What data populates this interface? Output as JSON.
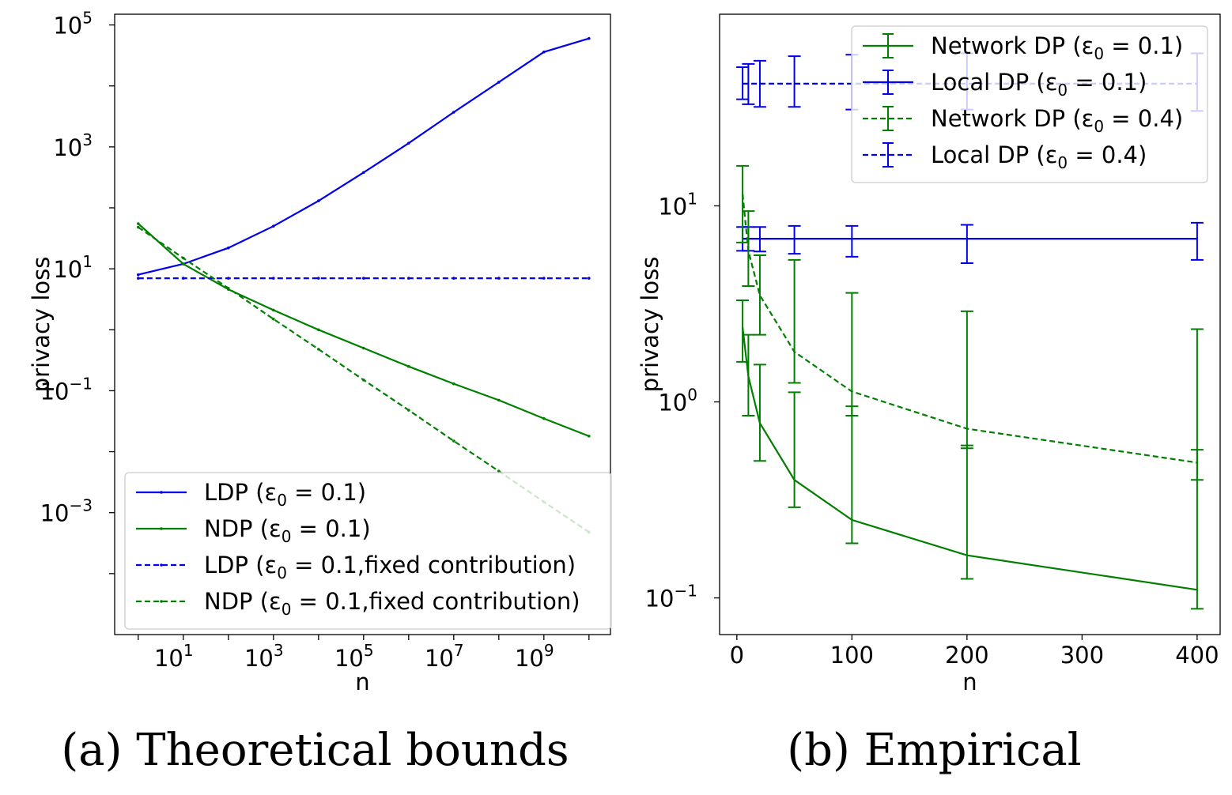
{
  "colors": {
    "ldp": "#0000ee",
    "ndp": "#007f00"
  },
  "chart_data": [
    {
      "type": "line",
      "caption": "(a) Theoretical bounds",
      "xlabel": "n",
      "ylabel": "privacy loss",
      "xscale": "log",
      "yscale": "log",
      "xlim": [
        0.3,
        30000000000
      ],
      "ylim": [
        1e-05,
        150000
      ],
      "xticks": [
        {
          "value": 10,
          "base": "10",
          "exp": "1"
        },
        {
          "value": 1000,
          "base": "10",
          "exp": "3"
        },
        {
          "value": 100000,
          "base": "10",
          "exp": "5"
        },
        {
          "value": 10000000,
          "base": "10",
          "exp": "7"
        },
        {
          "value": 1000000000,
          "base": "10",
          "exp": "9"
        }
      ],
      "yticks": [
        {
          "value": 0.001,
          "base": "10",
          "exp": "−3"
        },
        {
          "value": 0.1,
          "base": "10",
          "exp": "−1"
        },
        {
          "value": 10,
          "base": "10",
          "exp": "1"
        },
        {
          "value": 1000,
          "base": "10",
          "exp": "3"
        },
        {
          "value": 100000,
          "base": "10",
          "exp": "5"
        }
      ],
      "legend_position": "lower-right",
      "series": [
        {
          "name": "LDP (ε0 = 0.1)",
          "color": "ldp",
          "dash": "solid",
          "x": [
            1,
            10,
            100,
            1000,
            10000,
            100000,
            1000000,
            10000000,
            100000000,
            1000000000,
            10000000000
          ],
          "y": [
            8,
            12,
            22,
            50,
            130,
            380,
            1150,
            3700,
            11500,
            36000,
            60000
          ]
        },
        {
          "name": "NDP (ε0 = 0.1)",
          "color": "ndp",
          "dash": "solid",
          "x": [
            1,
            10,
            100,
            1000,
            10000,
            100000,
            1000000,
            10000000,
            100000000,
            1000000000,
            10000000000
          ],
          "y": [
            55,
            12,
            4.6,
            2.1,
            1.0,
            0.5,
            0.25,
            0.13,
            0.07,
            0.035,
            0.018
          ]
        },
        {
          "name": "LDP (ε0 = 0.1,fixed contribution)",
          "color": "ldp",
          "dash": "dashed",
          "x": [
            1,
            10,
            100,
            1000,
            10000,
            100000,
            1000000,
            10000000,
            100000000,
            1000000000,
            10000000000
          ],
          "y": [
            7,
            7,
            7,
            7,
            7,
            7,
            7,
            7,
            7,
            7,
            7
          ]
        },
        {
          "name": "NDP (ε0 = 0.1,fixed contribution)",
          "color": "ndp",
          "dash": "dashed",
          "x": [
            1,
            10,
            100,
            1000,
            10000,
            100000,
            1000000,
            10000000,
            100000000,
            1000000000,
            10000000000
          ],
          "y": [
            48,
            15,
            4.8,
            1.5,
            0.48,
            0.15,
            0.048,
            0.015,
            0.0048,
            0.0015,
            0.00048
          ]
        }
      ]
    },
    {
      "type": "line",
      "caption": "(b) Empirical",
      "xlabel": "n",
      "ylabel": "privacy loss",
      "xscale": "linear",
      "yscale": "log",
      "xlim": [
        -15,
        420
      ],
      "ylim": [
        0.065,
        95
      ],
      "xticks": [
        {
          "value": 0,
          "label": "0"
        },
        {
          "value": 100,
          "label": "100"
        },
        {
          "value": 200,
          "label": "200"
        },
        {
          "value": 300,
          "label": "300"
        },
        {
          "value": 400,
          "label": "400"
        }
      ],
      "yticks": [
        {
          "value": 0.1,
          "base": "10",
          "exp": "−1"
        },
        {
          "value": 1,
          "base": "10",
          "exp": "0"
        },
        {
          "value": 10,
          "base": "10",
          "exp": "1"
        }
      ],
      "legend_position": "upper-right",
      "series": [
        {
          "name": "Network DP (ε0 = 0.1)",
          "color": "ndp",
          "dash": "solid",
          "x": [
            5,
            10,
            20,
            50,
            100,
            200,
            400
          ],
          "y": [
            2.4,
            1.35,
            0.78,
            0.4,
            0.25,
            0.165,
            0.11
          ],
          "err_low": [
            1.6,
            0.85,
            0.5,
            0.29,
            0.19,
            0.125,
            0.088
          ],
          "err_high": [
            3.3,
            2.2,
            1.55,
            1.12,
            0.95,
            0.6,
            0.57
          ]
        },
        {
          "name": "Local DP (ε0 = 0.1)",
          "color": "ldp",
          "dash": "solid",
          "x": [
            5,
            10,
            20,
            50,
            100,
            200,
            400
          ],
          "y": [
            6.8,
            6.8,
            6.8,
            6.8,
            6.8,
            6.8,
            6.8
          ],
          "err_low": [
            5.9,
            5.9,
            5.85,
            5.7,
            5.5,
            5.1,
            5.3
          ],
          "err_high": [
            7.8,
            7.8,
            7.8,
            7.9,
            7.9,
            8.0,
            8.2
          ]
        },
        {
          "name": "Network DP (ε0 = 0.4)",
          "color": "ndp",
          "dash": "dashed",
          "x": [
            5,
            10,
            20,
            50,
            100,
            200,
            400
          ],
          "y": [
            11.5,
            5.9,
            3.5,
            1.8,
            1.13,
            0.73,
            0.49
          ],
          "err_low": [
            6.5,
            3.9,
            2.2,
            1.25,
            0.85,
            0.58,
            0.4
          ],
          "err_high": [
            16,
            9.4,
            5.6,
            5.3,
            3.6,
            2.9,
            2.35
          ]
        },
        {
          "name": "Local DP (ε0 = 0.4)",
          "color": "ldp",
          "dash": "dashed",
          "x": [
            5,
            10,
            20,
            50,
            100,
            200,
            400
          ],
          "y": [
            42,
            42,
            42,
            42,
            42,
            42,
            42
          ],
          "err_low": [
            35,
            33,
            32,
            32,
            31,
            31,
            30.5
          ],
          "err_high": [
            51,
            53,
            55,
            58,
            59,
            60,
            60
          ]
        }
      ]
    }
  ]
}
